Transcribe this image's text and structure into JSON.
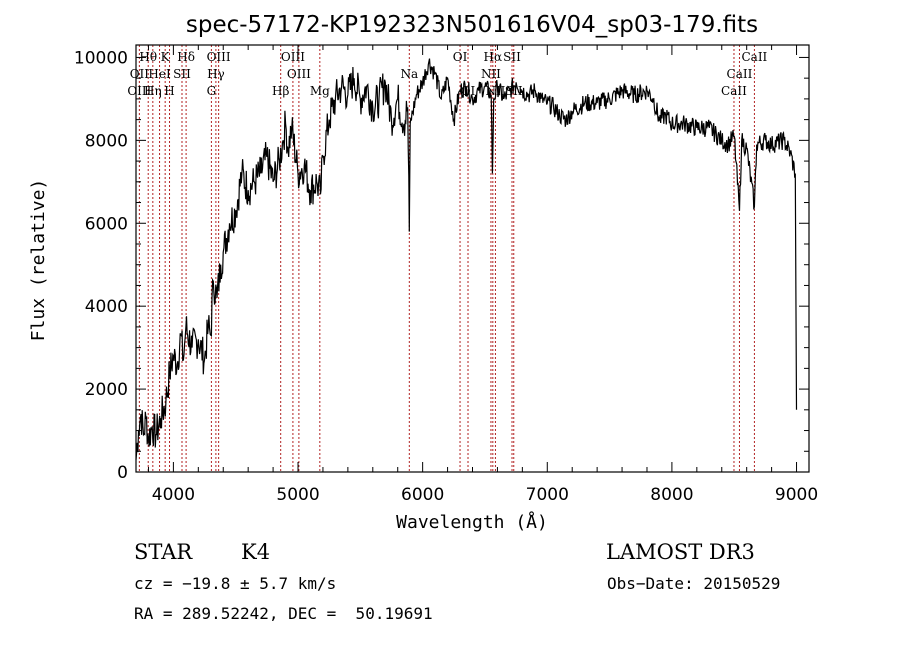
{
  "chart_data": {
    "type": "line",
    "title": "spec-57172-KP192323N501616V04_sp03-179.fits",
    "xlabel": "Wavelength (Å)",
    "ylabel": "Flux (relative)",
    "xlim": [
      3700,
      9100
    ],
    "ylim": [
      0,
      10300
    ],
    "xticks": [
      4000,
      5000,
      6000,
      7000,
      8000,
      9000
    ],
    "yticks": [
      0,
      2000,
      4000,
      6000,
      8000,
      10000
    ],
    "spectrum": [
      [
        3700,
        300
      ],
      [
        3720,
        1000
      ],
      [
        3740,
        1400
      ],
      [
        3760,
        900
      ],
      [
        3780,
        1300
      ],
      [
        3800,
        800
      ],
      [
        3830,
        1100
      ],
      [
        3860,
        900
      ],
      [
        3900,
        1300
      ],
      [
        3940,
        1700
      ],
      [
        3970,
        2400
      ],
      [
        4000,
        2800
      ],
      [
        4030,
        2600
      ],
      [
        4060,
        3300
      ],
      [
        4080,
        2700
      ],
      [
        4100,
        3500
      ],
      [
        4150,
        3000
      ],
      [
        4200,
        3200
      ],
      [
        4250,
        2700
      ],
      [
        4280,
        3500
      ],
      [
        4300,
        3300
      ],
      [
        4320,
        4600
      ],
      [
        4350,
        4200
      ],
      [
        4380,
        5000
      ],
      [
        4400,
        5300
      ],
      [
        4450,
        6000
      ],
      [
        4500,
        6300
      ],
      [
        4550,
        7200
      ],
      [
        4600,
        6800
      ],
      [
        4650,
        7000
      ],
      [
        4700,
        7200
      ],
      [
        4750,
        7600
      ],
      [
        4800,
        7000
      ],
      [
        4850,
        7500
      ],
      [
        4880,
        8000
      ],
      [
        4900,
        8400
      ],
      [
        4920,
        7800
      ],
      [
        4950,
        8300
      ],
      [
        5000,
        7200
      ],
      [
        5050,
        7400
      ],
      [
        5100,
        6800
      ],
      [
        5150,
        7000
      ],
      [
        5180,
        6700
      ],
      [
        5200,
        7600
      ],
      [
        5250,
        8500
      ],
      [
        5300,
        9000
      ],
      [
        5350,
        9300
      ],
      [
        5400,
        9100
      ],
      [
        5450,
        9500
      ],
      [
        5500,
        9000
      ],
      [
        5550,
        9300
      ],
      [
        5600,
        8800
      ],
      [
        5650,
        9000
      ],
      [
        5700,
        9400
      ],
      [
        5750,
        8500
      ],
      [
        5800,
        9000
      ],
      [
        5850,
        8400
      ],
      [
        5880,
        8800
      ],
      [
        5893,
        5800
      ],
      [
        5900,
        8400
      ],
      [
        5950,
        9100
      ],
      [
        6000,
        9400
      ],
      [
        6050,
        9900
      ],
      [
        6100,
        9600
      ],
      [
        6150,
        9000
      ],
      [
        6200,
        9500
      ],
      [
        6250,
        8500
      ],
      [
        6300,
        9200
      ],
      [
        6350,
        9300
      ],
      [
        6400,
        9000
      ],
      [
        6450,
        9200
      ],
      [
        6500,
        9300
      ],
      [
        6550,
        9100
      ],
      [
        6560,
        7200
      ],
      [
        6570,
        9000
      ],
      [
        6600,
        9300
      ],
      [
        6650,
        9000
      ],
      [
        6700,
        9200
      ],
      [
        6750,
        9400
      ],
      [
        6800,
        9200
      ],
      [
        6850,
        9100
      ],
      [
        6900,
        9200
      ],
      [
        6950,
        9000
      ],
      [
        7000,
        8900
      ],
      [
        7050,
        8800
      ],
      [
        7100,
        8600
      ],
      [
        7150,
        8500
      ],
      [
        7200,
        8700
      ],
      [
        7300,
        8900
      ],
      [
        7400,
        8900
      ],
      [
        7500,
        9000
      ],
      [
        7600,
        9200
      ],
      [
        7700,
        9100
      ],
      [
        7800,
        9200
      ],
      [
        7850,
        9000
      ],
      [
        7900,
        8500
      ],
      [
        7950,
        8600
      ],
      [
        8000,
        8400
      ],
      [
        8100,
        8400
      ],
      [
        8200,
        8300
      ],
      [
        8300,
        8300
      ],
      [
        8400,
        8000
      ],
      [
        8450,
        7900
      ],
      [
        8500,
        8100
      ],
      [
        8542,
        6300
      ],
      [
        8560,
        8000
      ],
      [
        8600,
        7800
      ],
      [
        8662,
        6400
      ],
      [
        8680,
        7900
      ],
      [
        8750,
        8000
      ],
      [
        8800,
        7900
      ],
      [
        8900,
        8000
      ],
      [
        8950,
        7700
      ],
      [
        8990,
        7200
      ],
      [
        9000,
        1500
      ]
    ],
    "lines": [
      {
        "label": "Hθ",
        "wl": 3798,
        "row": 0
      },
      {
        "label": "OII",
        "wl": 3727,
        "row": 1
      },
      {
        "label": "OIII",
        "wl": 3727,
        "row": 2
      },
      {
        "label": "K",
        "wl": 3934,
        "row": 0
      },
      {
        "label": "HeI",
        "wl": 3889,
        "row": 1
      },
      {
        "label": "Hη",
        "wl": 3835,
        "row": 2
      },
      {
        "label": "Hδ",
        "wl": 4102,
        "row": 0
      },
      {
        "label": "SII",
        "wl": 4069,
        "row": 1
      },
      {
        "label": "H",
        "wl": 3969,
        "row": 2
      },
      {
        "label": "OIII",
        "wl": 4363,
        "row": 0
      },
      {
        "label": "Hγ",
        "wl": 4341,
        "row": 1
      },
      {
        "label": "G",
        "wl": 4305,
        "row": 2
      },
      {
        "label": "OIII",
        "wl": 4959,
        "row": 0
      },
      {
        "label": "OIII",
        "wl": 5007,
        "row": 1
      },
      {
        "label": "Hβ",
        "wl": 4861,
        "row": 2
      },
      {
        "label": "Mg",
        "wl": 5175,
        "row": 2
      },
      {
        "label": "Na",
        "wl": 5893,
        "row": 1
      },
      {
        "label": "OI",
        "wl": 6300,
        "row": 0
      },
      {
        "label": "OI",
        "wl": 6364,
        "row": 2
      },
      {
        "label": "Hα",
        "wl": 6563,
        "row": 0
      },
      {
        "label": "SII",
        "wl": 6717,
        "row": 0
      },
      {
        "label": "NII",
        "wl": 6548,
        "row": 1
      },
      {
        "label": "NII",
        "wl": 6584,
        "row": 2
      },
      {
        "label": "SII",
        "wl": 6731,
        "row": 2
      },
      {
        "label": "CaII",
        "wl": 8662,
        "row": 0
      },
      {
        "label": "CaII",
        "wl": 8542,
        "row": 1
      },
      {
        "label": "CaII",
        "wl": 8498,
        "row": 2
      }
    ]
  },
  "info": {
    "class_label": "STAR",
    "subclass": "K4",
    "survey": "LAMOST DR3",
    "cz": "cz = −19.8 ± 5.7 km/s",
    "obs_date": "Obs−Date: 20150529",
    "coords": "RA = 289.52242, DEC =  50.19691"
  },
  "colors": {
    "line": "#000000",
    "marker": "#b22222"
  }
}
